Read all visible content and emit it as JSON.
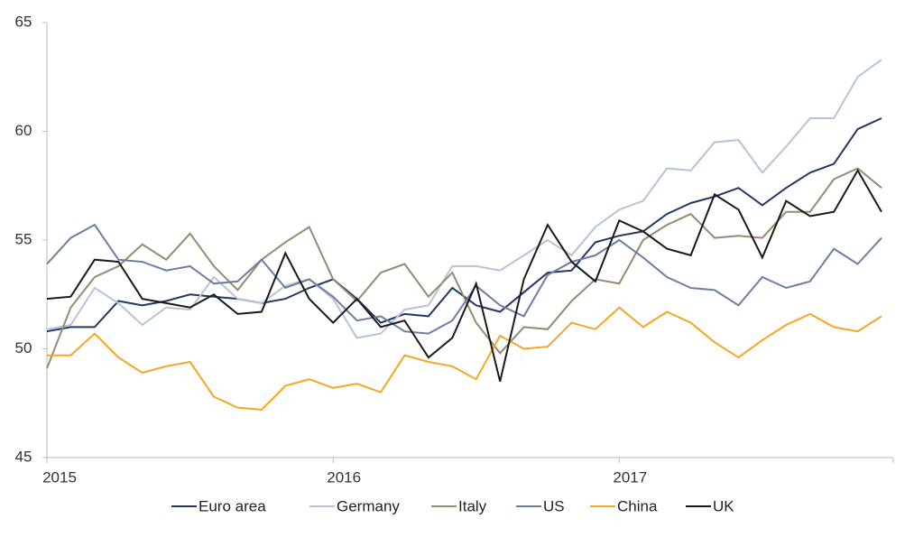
{
  "chart_data": {
    "type": "line",
    "categories": [
      "2015",
      null,
      null,
      null,
      null,
      null,
      null,
      null,
      null,
      null,
      null,
      null,
      "2016",
      null,
      null,
      null,
      null,
      null,
      null,
      null,
      null,
      null,
      null,
      null,
      "2017",
      null,
      null,
      null,
      null,
      null,
      null,
      null,
      null,
      null,
      null,
      null
    ],
    "ylim": [
      45,
      65
    ],
    "yticks": [
      45,
      50,
      55,
      60,
      65
    ],
    "series": [
      {
        "name": "Euro area",
        "color": "#1f3864",
        "values": [
          50.8,
          51.0,
          51.0,
          52.2,
          52.0,
          52.2,
          52.5,
          52.4,
          52.3,
          52.1,
          52.3,
          52.8,
          53.2,
          52.3,
          51.2,
          51.6,
          51.5,
          52.8,
          52.0,
          51.7,
          52.6,
          53.5,
          53.6,
          54.9,
          55.2,
          55.4,
          56.2,
          56.7,
          57.0,
          57.4,
          56.6,
          57.4,
          58.1,
          58.5,
          60.1,
          60.6
        ]
      },
      {
        "name": "Germany",
        "color": "#b8c2d8",
        "values": [
          50.9,
          51.1,
          52.8,
          52.1,
          51.1,
          51.9,
          51.8,
          53.3,
          52.3,
          52.1,
          52.9,
          53.2,
          52.3,
          50.5,
          50.7,
          51.8,
          52.0,
          53.8,
          53.8,
          53.6,
          54.3,
          55.0,
          54.3,
          55.6,
          56.4,
          56.8,
          58.3,
          58.2,
          59.5,
          59.6,
          58.1,
          59.3,
          60.6,
          60.6,
          62.5,
          63.3
        ]
      },
      {
        "name": "Italy",
        "color": "#958a72",
        "values": [
          49.1,
          51.9,
          53.3,
          53.8,
          54.8,
          54.1,
          55.3,
          53.8,
          52.7,
          54.1,
          54.9,
          55.6,
          53.2,
          52.2,
          53.5,
          53.9,
          52.4,
          53.5,
          51.2,
          49.8,
          51.0,
          50.9,
          52.2,
          53.2,
          53.0,
          55.0,
          55.7,
          56.2,
          55.1,
          55.2,
          55.1,
          56.3,
          56.3,
          57.8,
          58.3,
          57.4
        ]
      },
      {
        "name": "US",
        "color": "#6b7fa3",
        "values": [
          53.9,
          55.1,
          55.7,
          54.1,
          54.0,
          53.6,
          53.8,
          53.0,
          53.1,
          54.1,
          52.8,
          53.2,
          52.4,
          51.3,
          51.5,
          50.8,
          50.7,
          51.3,
          52.9,
          52.0,
          51.5,
          53.4,
          54.0,
          54.3,
          55.0,
          54.2,
          53.3,
          52.8,
          52.7,
          52.0,
          53.3,
          52.8,
          53.1,
          54.6,
          53.9,
          55.1
        ]
      },
      {
        "name": "China",
        "color": "#f5a623",
        "values": [
          49.7,
          49.7,
          50.7,
          49.6,
          48.9,
          49.2,
          49.4,
          47.8,
          47.3,
          47.2,
          48.3,
          48.6,
          48.2,
          48.4,
          48.0,
          49.7,
          49.4,
          49.2,
          48.6,
          50.6,
          50.0,
          50.1,
          51.2,
          50.9,
          51.9,
          51.0,
          51.7,
          51.2,
          50.3,
          49.6,
          50.4,
          51.1,
          51.6,
          51.0,
          50.8,
          51.5
        ]
      },
      {
        "name": "UK",
        "color": "#1a1a1a",
        "values": [
          52.3,
          52.4,
          54.1,
          54.0,
          52.3,
          52.1,
          51.9,
          52.5,
          51.6,
          51.7,
          54.4,
          52.3,
          51.2,
          52.3,
          51.0,
          51.3,
          49.6,
          50.5,
          53.0,
          48.5,
          53.2,
          55.7,
          54.0,
          53.1,
          55.9,
          55.4,
          54.6,
          54.3,
          57.1,
          56.4,
          54.2,
          56.8,
          56.1,
          56.3,
          58.2,
          56.3
        ]
      }
    ]
  }
}
